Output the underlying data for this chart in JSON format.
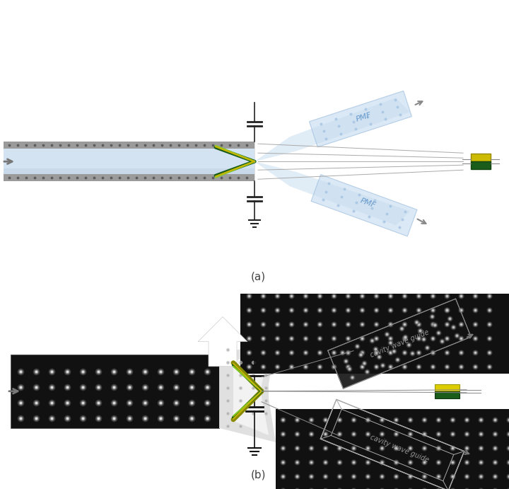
{
  "fig_width": 7.2,
  "fig_height": 6.91,
  "bg_color": "#ffffff",
  "label_a": "(a)",
  "label_b": "(b)",
  "pmf_text": "PMF",
  "cwg_text": "cavity wave guide",
  "pmf_color": "#c8ddf0",
  "pmf_text_color": "#6699cc",
  "cwg_text_color": "#aaaaaa",
  "green_dark": "#1a5c1a",
  "green_light": "#88cc22",
  "yellow_olive": "#c8b400",
  "gray_arrow": "#888888",
  "wg_color": "#b8cce4",
  "wg_dark": "#8899bb"
}
